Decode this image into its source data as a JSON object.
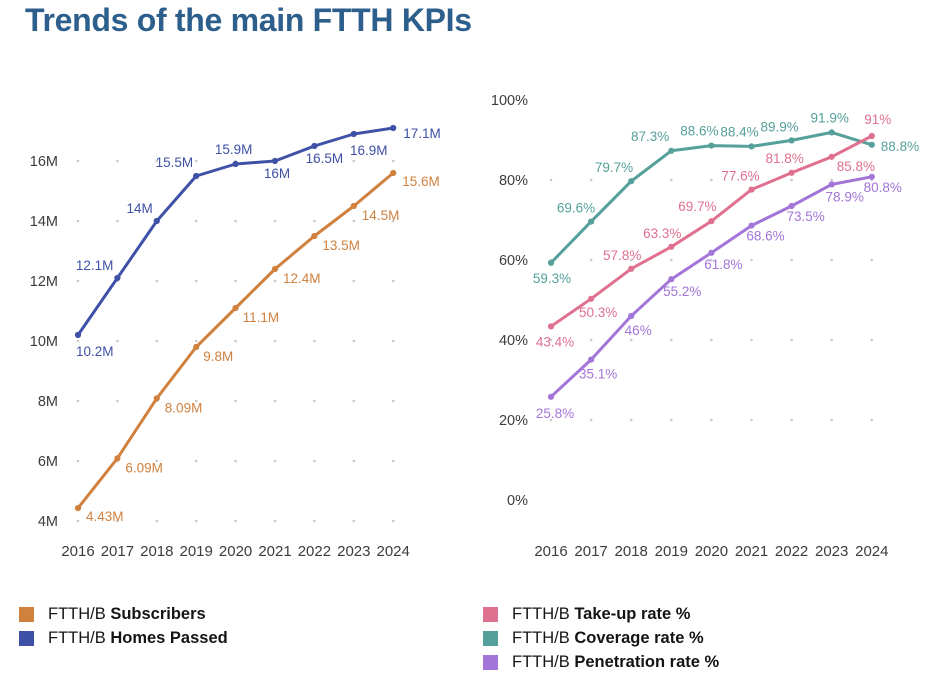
{
  "title": "Trends of the main FTTH KPIs",
  "colors": {
    "title": "#2D5F8C",
    "axis_text": "#3C3C3C",
    "grid_dot": "#C9C9C9",
    "subscribers": "#D0813E",
    "homes_passed": "#3E51A6",
    "takeup": "#E0708F",
    "coverage": "#55A09A",
    "penetration": "#A375D8",
    "legend_text": "#141414"
  },
  "legends": {
    "left": [
      {
        "prefix": "FTTH/B",
        "name": "Subscribers",
        "color": "subscribers"
      },
      {
        "prefix": "FTTH/B",
        "name": "Homes Passed",
        "color": "homes_passed"
      }
    ],
    "right": [
      {
        "prefix": "FTTH/B",
        "name": "Take-up rate %",
        "color": "takeup"
      },
      {
        "prefix": "FTTH/B",
        "name": "Coverage rate %",
        "color": "coverage"
      },
      {
        "prefix": "FTTH/B",
        "name": "Penetration rate %",
        "color": "penetration"
      }
    ]
  },
  "chart_data": [
    {
      "type": "line",
      "name": "ftth-volumes-chart",
      "unit": "millions",
      "title": "",
      "xlabel": "",
      "ylabel": "",
      "grid": "dots",
      "legend_position": "below",
      "x": [
        "2016",
        "2017",
        "2018",
        "2019",
        "2020",
        "2021",
        "2022",
        "2023",
        "2024"
      ],
      "ylim": [
        4,
        17.5
      ],
      "y_ticks": [
        {
          "v": 4,
          "label": "4M",
          "dots": true
        },
        {
          "v": 6,
          "label": "6M",
          "dots": true
        },
        {
          "v": 8,
          "label": "8M",
          "dots": true
        },
        {
          "v": 10,
          "label": "10M",
          "dots": true
        },
        {
          "v": 12,
          "label": "12M",
          "dots": true
        },
        {
          "v": 14,
          "label": "14M",
          "dots": true
        },
        {
          "v": 16,
          "label": "16M",
          "dots": true
        }
      ],
      "series": [
        {
          "name": "FTTH/B Homes Passed",
          "color": "homes_passed",
          "values": [
            10.2,
            12.1,
            14,
            15.5,
            15.9,
            16,
            16.5,
            16.9,
            17.1
          ],
          "labels": [
            "10.2M",
            "12.1M",
            "14M",
            "15.5M",
            "15.9M",
            "16M",
            "16.5M",
            "16.9M",
            "17.1M"
          ],
          "label_offsets": [
            [
              -2,
              21,
              "start"
            ],
            [
              -4,
              -8,
              "end"
            ],
            [
              -4,
              -8,
              "end"
            ],
            [
              -3,
              -9,
              "end"
            ],
            [
              -2,
              -10,
              "middle"
            ],
            [
              2,
              17,
              "middle"
            ],
            [
              10,
              17,
              "middle"
            ],
            [
              15,
              21,
              "middle"
            ],
            [
              10,
              10,
              "start"
            ]
          ]
        },
        {
          "name": "FTTH/B Subscribers",
          "color": "subscribers",
          "values": [
            4.43,
            6.09,
            8.09,
            9.8,
            11.1,
            12.4,
            13.5,
            14.5,
            15.6
          ],
          "labels": [
            "4.43M",
            "6.09M",
            "8.09M",
            "9.8M",
            "11.1M",
            "12.4M",
            "13.5M",
            "14.5M",
            "15.6M"
          ],
          "label_offsets": [
            [
              8,
              13,
              "start"
            ],
            [
              8,
              14,
              "start"
            ],
            [
              8,
              14,
              "start"
            ],
            [
              7,
              14,
              "start"
            ],
            [
              7,
              14,
              "start"
            ],
            [
              8,
              14,
              "start"
            ],
            [
              8,
              14,
              "start"
            ],
            [
              8,
              14,
              "start"
            ],
            [
              9,
              13,
              "start"
            ]
          ]
        }
      ]
    },
    {
      "type": "line",
      "name": "ftth-rates-chart",
      "unit": "percent",
      "title": "",
      "xlabel": "",
      "ylabel": "",
      "grid": "dots",
      "legend_position": "below",
      "x": [
        "2016",
        "2017",
        "2018",
        "2019",
        "2020",
        "2021",
        "2022",
        "2023",
        "2024"
      ],
      "ylim": [
        0,
        100
      ],
      "y_ticks": [
        {
          "v": 0,
          "label": "0%",
          "dots": false
        },
        {
          "v": 20,
          "label": "20%",
          "dots": true
        },
        {
          "v": 40,
          "label": "40%",
          "dots": true
        },
        {
          "v": 60,
          "label": "60%",
          "dots": true
        },
        {
          "v": 80,
          "label": "80%",
          "dots": true
        },
        {
          "v": 100,
          "label": "100%",
          "dots": false
        }
      ],
      "series": [
        {
          "name": "FTTH/B Coverage rate %",
          "color": "coverage",
          "values": [
            59.3,
            69.6,
            79.7,
            87.3,
            88.6,
            88.4,
            89.9,
            91.9,
            88.8
          ],
          "labels": [
            "59.3%",
            "69.6%",
            "79.7%",
            "87.3%",
            "88.6%",
            "88.4%",
            "89.9%",
            "91.9%",
            "88.8%"
          ],
          "label_offsets": [
            [
              1,
              20,
              "middle"
            ],
            [
              4,
              -9,
              "end"
            ],
            [
              2,
              -9,
              "end"
            ],
            [
              -2,
              -10,
              "end"
            ],
            [
              -12,
              -10,
              "middle"
            ],
            [
              -12,
              -10,
              "middle"
            ],
            [
              -12,
              -9,
              "middle"
            ],
            [
              -2,
              -10,
              "middle"
            ],
            [
              9,
              6,
              "start"
            ]
          ]
        },
        {
          "name": "FTTH/B Penetration rate %",
          "color": "penetration",
          "values": [
            25.8,
            35.1,
            46,
            55.2,
            61.8,
            68.6,
            73.5,
            78.9,
            80.8
          ],
          "labels": [
            "25.8%",
            "35.1%",
            "46%",
            "55.2%",
            "61.8%",
            "68.6%",
            "73.5%",
            "78.9%",
            "80.8%"
          ],
          "label_offsets": [
            [
              4,
              21,
              "middle"
            ],
            [
              7,
              19,
              "middle"
            ],
            [
              7,
              19,
              "middle"
            ],
            [
              11,
              17,
              "middle"
            ],
            [
              12,
              16,
              "middle"
            ],
            [
              14,
              15,
              "middle"
            ],
            [
              14,
              15,
              "middle"
            ],
            [
              13,
              17,
              "middle"
            ],
            [
              11,
              15,
              "middle"
            ]
          ]
        },
        {
          "name": "FTTH/B Take-up rate %",
          "color": "takeup",
          "values": [
            43.4,
            50.3,
            57.8,
            63.3,
            69.7,
            77.6,
            81.8,
            85.8,
            91
          ],
          "labels": [
            "43.4%",
            "50.3%",
            "57.8%",
            "63.3%",
            "69.7%",
            "77.6%",
            "81.8%",
            "85.8%",
            "91%"
          ],
          "label_offsets": [
            [
              4,
              20,
              "middle"
            ],
            [
              7,
              18,
              "middle"
            ],
            [
              -9,
              -9,
              "middle"
            ],
            [
              -9,
              -9,
              "middle"
            ],
            [
              -14,
              -10,
              "middle"
            ],
            [
              -11,
              -9,
              "middle"
            ],
            [
              -7,
              -10,
              "middle"
            ],
            [
              5,
              14,
              "start"
            ],
            [
              6,
              -12,
              "middle"
            ]
          ]
        }
      ]
    }
  ]
}
